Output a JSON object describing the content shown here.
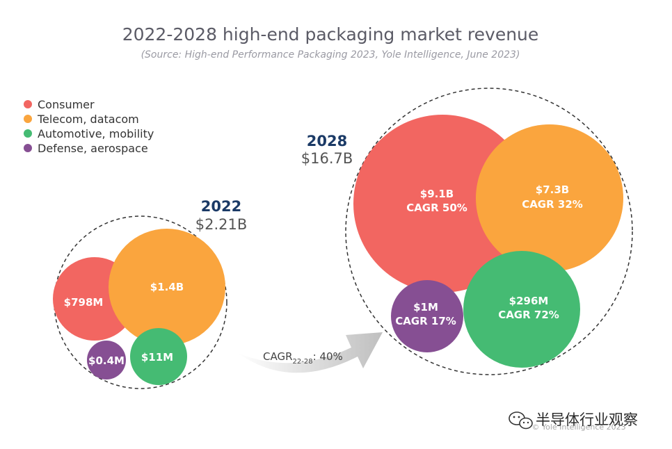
{
  "chart_data": {
    "type": "bubble",
    "title": "2022-2028 high-end packaging market revenue",
    "subtitle": "(Source: High-end Performance Packaging 2023, Yole Intelligence, June 2023)",
    "legend": [
      {
        "name": "Consumer",
        "color": "#f26661"
      },
      {
        "name": "Telecom, datacom",
        "color": "#faa53e"
      },
      {
        "name": "Automotive, mobility",
        "color": "#45bb73"
      },
      {
        "name": "Defense, aerospace",
        "color": "#864f93"
      }
    ],
    "groups": [
      {
        "year": "2022",
        "total": "$2.21B",
        "bubbles": [
          {
            "segment": "Consumer",
            "label": "$798M",
            "cagr": ""
          },
          {
            "segment": "Telecom, datacom",
            "label": "$1.4B",
            "cagr": ""
          },
          {
            "segment": "Automotive, mobility",
            "label": "$11M",
            "cagr": ""
          },
          {
            "segment": "Defense, aerospace",
            "label": "$0.4M",
            "cagr": ""
          }
        ]
      },
      {
        "year": "2028",
        "total": "$16.7B",
        "bubbles": [
          {
            "segment": "Consumer",
            "label": "$9.1B",
            "cagr": "CAGR 50%"
          },
          {
            "segment": "Telecom, datacom",
            "label": "$7.3B",
            "cagr": "CAGR 32%"
          },
          {
            "segment": "Automotive, mobility",
            "label": "$296M",
            "cagr": "CAGR 72%"
          },
          {
            "segment": "Defense, aerospace",
            "label": "$1M",
            "cagr": "CAGR 17%"
          }
        ]
      }
    ],
    "overall_cagr": {
      "prefix": "CAGR",
      "subscript": "22-28",
      "suffix": ": 40%"
    }
  },
  "watermark": {
    "text": "半导体行业观察",
    "icon": "wechat-icon"
  },
  "copyright": "© Yole Intelligence 2023"
}
